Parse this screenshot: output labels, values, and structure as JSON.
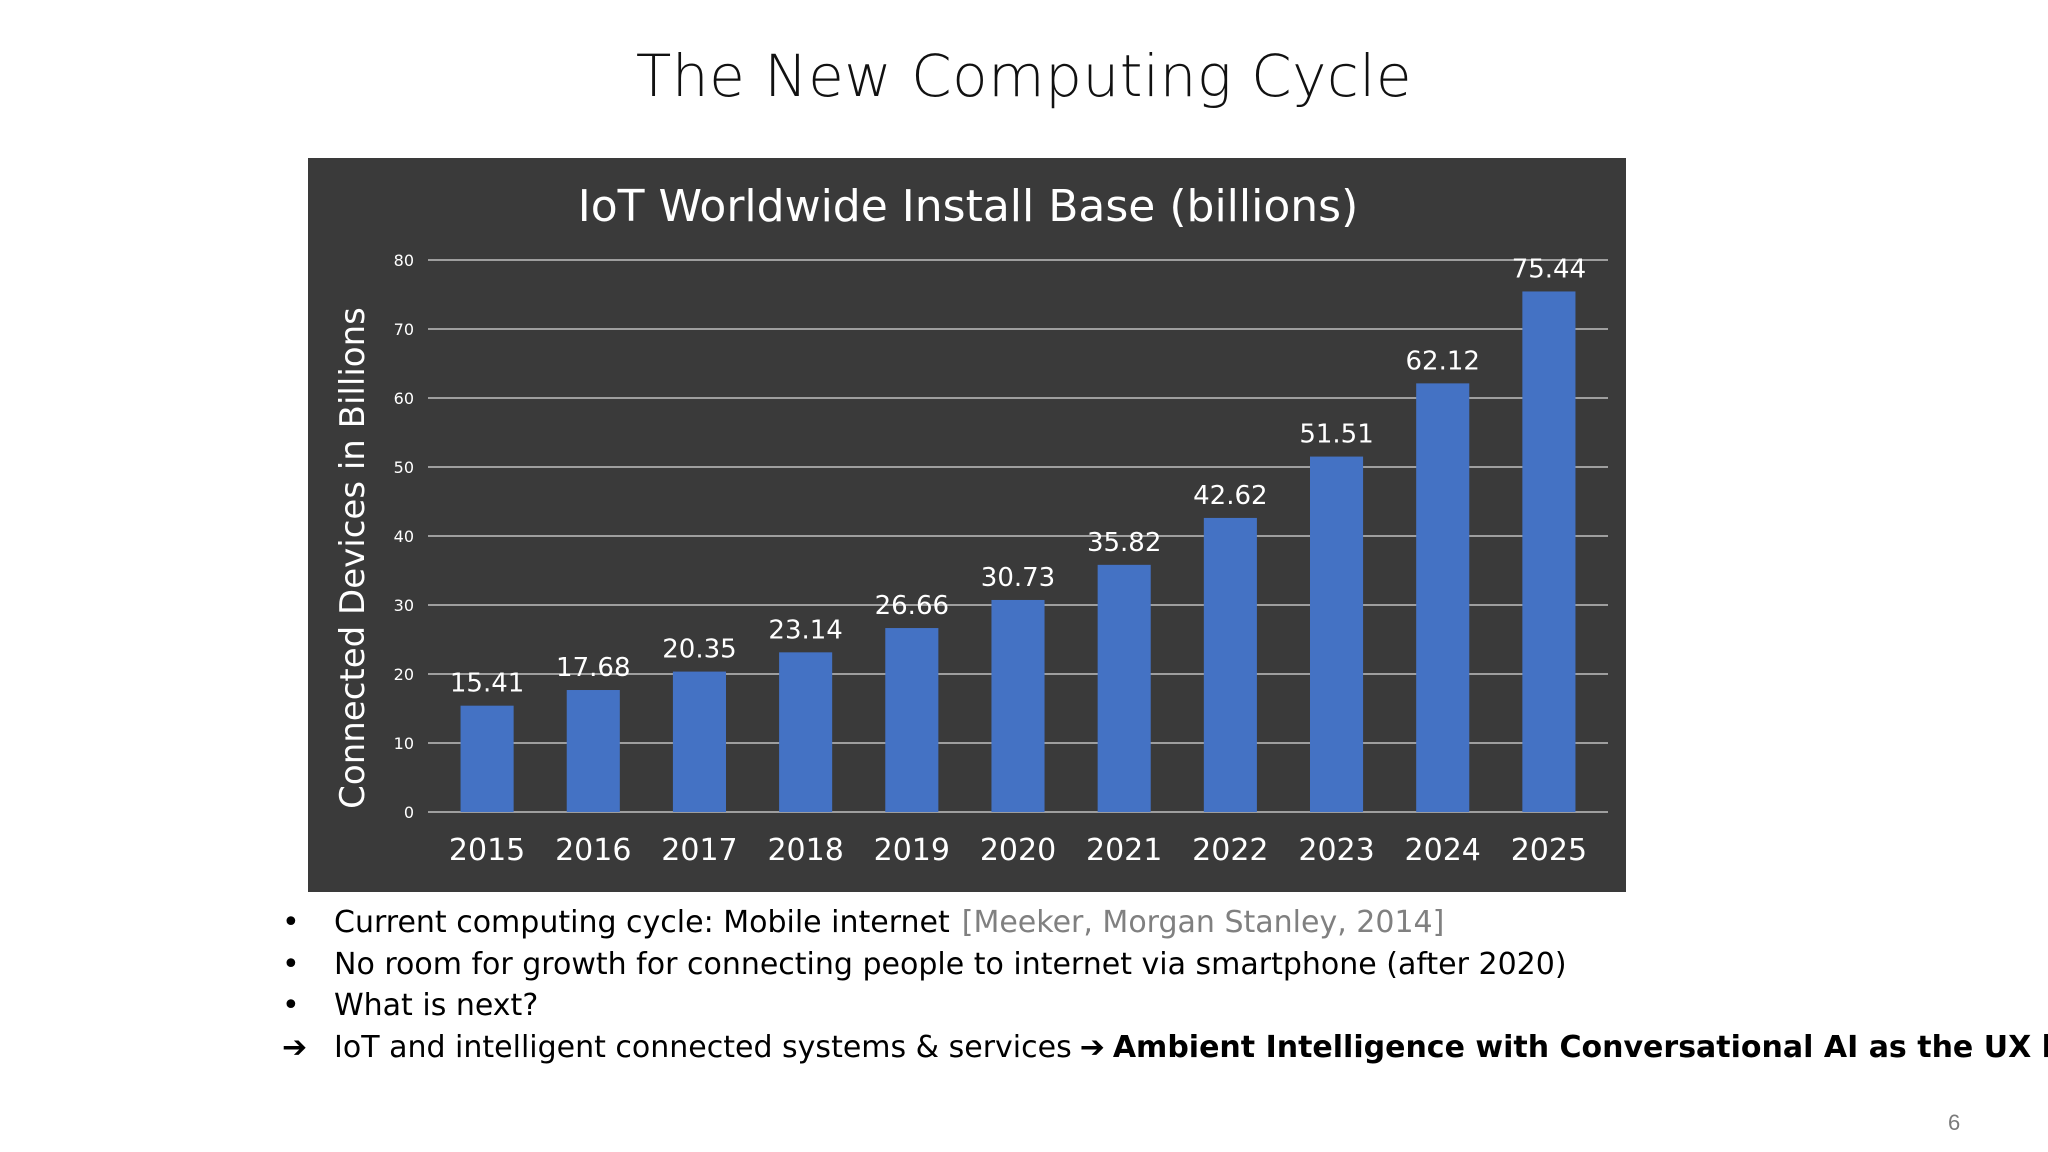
{
  "slide": {
    "title": "The New Computing Cycle",
    "page_number": "6"
  },
  "bullets": [
    {
      "marker": "•",
      "text": "Current computing cycle: Mobile internet",
      "citation": "[Meeker, Morgan Stanley, 2014]"
    },
    {
      "marker": "•",
      "text": "No room for growth for connecting people to internet via smartphone (after 2020)"
    },
    {
      "marker": "•",
      "text": "What is next?"
    },
    {
      "marker": "➔",
      "text": "IoT and intelligent connected systems & services",
      "arrow": "➔",
      "bold_text": "Ambient Intelligence with Conversational AI as the UX layer"
    }
  ],
  "colors": {
    "chart_background": "#3a3a3a",
    "bar": "#4472c4",
    "gridline": "#d9d9d9",
    "chart_text": "#ffffff"
  },
  "chart_data": {
    "type": "bar",
    "title": "IoT Worldwide Install Base (billions)",
    "ylabel": "Connected Devices  in Billions",
    "xlabel": "",
    "categories": [
      "2015",
      "2016",
      "2017",
      "2018",
      "2019",
      "2020",
      "2021",
      "2022",
      "2023",
      "2024",
      "2025"
    ],
    "values": [
      15.41,
      17.68,
      20.35,
      23.14,
      26.66,
      30.73,
      35.82,
      42.62,
      51.51,
      62.12,
      75.44
    ],
    "data_labels": [
      "15.41",
      "17.68",
      "20.35",
      "23.14",
      "26.66",
      "30.73",
      "35.82",
      "42.62",
      "51.51",
      "62.12",
      "75.44"
    ],
    "ylim": [
      0,
      80
    ],
    "yticks": [
      0,
      10,
      20,
      30,
      40,
      50,
      60,
      70,
      80
    ],
    "grid": true,
    "legend": "none"
  }
}
